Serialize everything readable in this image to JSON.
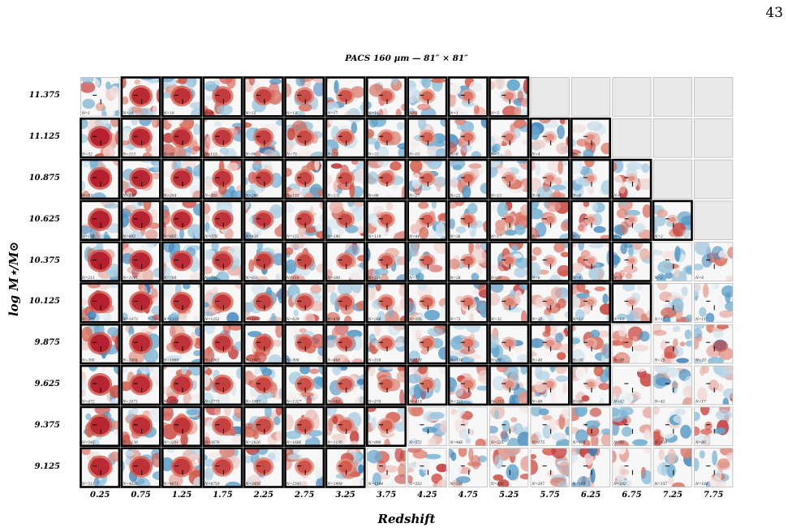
{
  "page_number": "43",
  "figure": {
    "title": "PACS 160 μm — 81″ × 81″",
    "ylabel": "log M⋆/M⊙",
    "xlabel": "Redshift",
    "redshift_bins": [
      "0.25",
      "0.75",
      "1.25",
      "1.75",
      "2.25",
      "2.75",
      "3.25",
      "3.75",
      "4.25",
      "4.75",
      "5.25",
      "5.75",
      "6.25",
      "6.75",
      "7.25",
      "7.75"
    ],
    "mass_bins": [
      "11.375",
      "11.125",
      "10.875",
      "10.625",
      "10.375",
      "10.125",
      "9.875",
      "9.625",
      "9.375",
      "9.125"
    ],
    "stamps": [
      [
        "N=1",
        "N=10",
        "N=19",
        "N=9",
        "N=15",
        "N=13",
        "N=17",
        "N=11",
        "N=5",
        "N=1",
        "N=5",
        null,
        null,
        null,
        null,
        null
      ],
      [
        "N=52",
        "N=113",
        "N=65",
        "N=115",
        "N=96",
        "N=75",
        "N=72",
        "N=32",
        "N=10",
        "N=6",
        "N=7",
        "N=4",
        "N=2",
        null,
        null,
        null
      ],
      [
        "N=93",
        "N=230",
        "N=284",
        "N=363",
        "N=280",
        "N=153",
        "N=131",
        "N=66",
        "N=27",
        "N=22",
        "N=13",
        "N=6",
        "N=6",
        "N=1",
        null,
        null
      ],
      [
        "N=154",
        "N=695",
        "N=602",
        "N=379",
        "N=426",
        "N=155",
        "N=190",
        "N=119",
        "N=44",
        "N=36",
        "N=17",
        "N=8",
        "N=2",
        "N=2",
        "N=2",
        null
      ],
      [
        "N=211",
        "N=1142",
        "N=780",
        "N=795",
        "N=631",
        "N=416",
        "N=300",
        "N=220",
        "N=77",
        "N=38",
        "N=29",
        "N=6",
        "N=4",
        "N=2",
        "N=2",
        "N=6"
      ],
      [
        "N=285",
        "N=1473",
        "N=1335",
        "N=1252",
        "N=1032",
        "N=629",
        "N=476",
        "N=286",
        "N=105",
        "N=73",
        "N=32",
        "N=25",
        "N=13",
        "N=13",
        "N=17",
        "N=11"
      ],
      [
        "N=398",
        "N=2084",
        "N=1908",
        "N=1963",
        "N=1415",
        "N=906",
        "N=668",
        "N=530",
        "N=270",
        "N=134",
        "N=76",
        "N=40",
        "N=30",
        "N=49",
        "N=25",
        "N=20"
      ],
      [
        "N=472",
        "N=2671",
        "N=2327",
        "N=2773",
        "N=1987",
        "N=1327",
        "N=987",
        "N=574",
        "N=415",
        "N=313",
        "N=213",
        "N=86",
        "N=96",
        "N=42",
        "N=42",
        "N=17"
      ],
      [
        "N=545",
        "N=3139",
        "N=3201",
        "N=3679",
        "N=2626",
        "N=1686",
        "N=1195",
        "N=990",
        "N=572",
        "N=466",
        "N=225",
        "N=175",
        "N=128",
        "N=49",
        "N=116",
        "N=86"
      ],
      [
        "N=513",
        "N=4026",
        "N=4071",
        "N=4759",
        "N=3456",
        "N=2545",
        "N=1908",
        "N=1194",
        "N=553",
        "N=580",
        "N=350",
        "N=207",
        "N=165",
        "N=282",
        "N=157",
        "N=168"
      ]
    ],
    "detected": [
      [
        0,
        1,
        1,
        1,
        1,
        1,
        1,
        1,
        1,
        1,
        1,
        1,
        1,
        0,
        0,
        0
      ],
      [
        1,
        1,
        1,
        1,
        1,
        1,
        1,
        1,
        1,
        1,
        1,
        1,
        1,
        0,
        0,
        0
      ],
      [
        1,
        1,
        1,
        1,
        1,
        1,
        1,
        1,
        1,
        1,
        1,
        1,
        1,
        1,
        0,
        0
      ],
      [
        1,
        1,
        1,
        1,
        1,
        1,
        1,
        1,
        1,
        1,
        1,
        1,
        1,
        1,
        1,
        0
      ],
      [
        1,
        1,
        1,
        1,
        1,
        1,
        1,
        1,
        1,
        1,
        1,
        1,
        1,
        1,
        0,
        0
      ],
      [
        1,
        1,
        1,
        1,
        1,
        1,
        1,
        1,
        1,
        1,
        1,
        1,
        1,
        1,
        0,
        0
      ],
      [
        1,
        1,
        1,
        1,
        1,
        1,
        1,
        1,
        1,
        1,
        1,
        1,
        1,
        0,
        0,
        0
      ],
      [
        1,
        1,
        1,
        1,
        1,
        1,
        1,
        1,
        1,
        1,
        1,
        1,
        1,
        0,
        0,
        0
      ],
      [
        1,
        1,
        1,
        1,
        1,
        1,
        1,
        1,
        0,
        0,
        0,
        0,
        0,
        0,
        0,
        0
      ],
      [
        1,
        1,
        1,
        1,
        1,
        1,
        1,
        0,
        0,
        0,
        0,
        0,
        0,
        0,
        0,
        0
      ]
    ],
    "colors": {
      "empty_cell": "#e9e9e9",
      "detection_border": "#000000",
      "nondetection_border": "#b8b8b8",
      "positive": "#b2182b",
      "negative": "#2166ac",
      "neutral": "#f7f7f7"
    }
  }
}
